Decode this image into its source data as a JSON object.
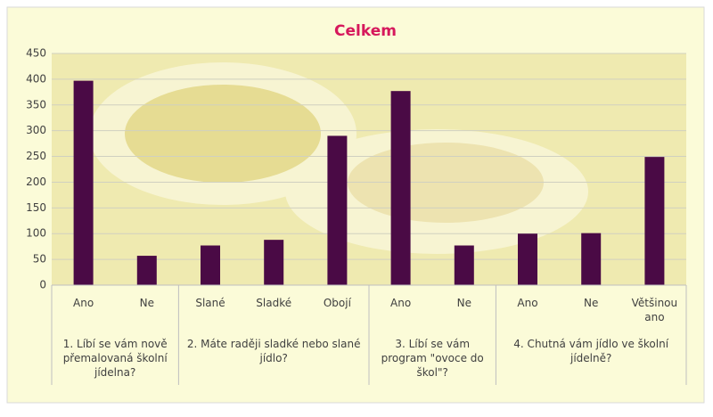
{
  "chart_data": {
    "type": "bar",
    "title": "Celkem",
    "color": "#4a0a45",
    "grid": true,
    "ylim": [
      0,
      450
    ],
    "yticks": [
      0,
      50,
      100,
      150,
      200,
      250,
      300,
      350,
      400,
      450
    ],
    "groups": [
      {
        "label": "1. Líbí se vám nově přemalovaná školní jídelna?",
        "categories": [
          "Ano",
          "Ne"
        ],
        "values": [
          397,
          57
        ]
      },
      {
        "label": "2. Máte raději sladké nebo slané jídlo?",
        "categories": [
          "Slané",
          "Sladké",
          "Obojí"
        ],
        "values": [
          77,
          88,
          290
        ]
      },
      {
        "label": "3. Líbí se vám program \"ovoce do škol\"?",
        "categories": [
          "Ano",
          "Ne"
        ],
        "values": [
          377,
          77
        ]
      },
      {
        "label": "4. Chutná vám jídlo ve školní jídelně?",
        "categories": [
          "Ano",
          "Ne",
          "Většinou ano"
        ],
        "values": [
          100,
          101,
          249
        ]
      }
    ]
  }
}
